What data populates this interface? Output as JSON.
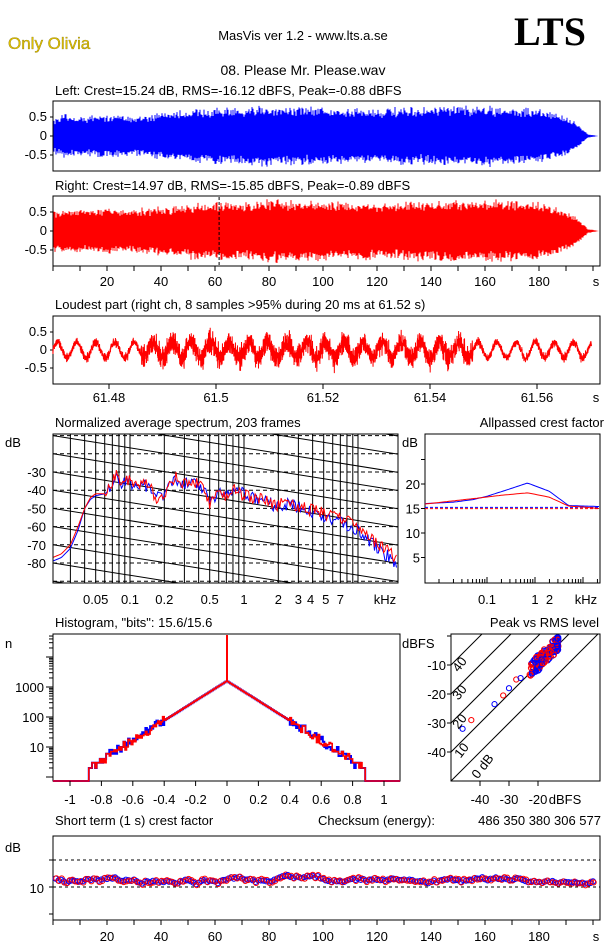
{
  "header": {
    "brand": "Only Olivia",
    "app_title": "MasVis ver 1.2 - www.lts.a.se",
    "logo_text": "LTS",
    "file_name": "08. Please Mr. Please.wav"
  },
  "colors": {
    "left": "#0000ff",
    "right": "#ff0000",
    "brand": "#e0c000"
  },
  "chart_data": [
    {
      "id": "left",
      "type": "line",
      "title": "Left: Crest=15.24 dB, RMS=-16.12 dBFS, Peak=-0.88 dBFS",
      "yticks": [
        "0.5",
        "0",
        "-0.5"
      ],
      "ylim": [
        -0.92,
        0.92
      ],
      "xlim": [
        0,
        202
      ],
      "envelope": {
        "t": [
          0,
          5,
          10,
          20,
          30,
          40,
          60,
          70,
          80,
          100,
          120,
          140,
          160,
          180,
          190,
          195,
          198,
          202
        ],
        "amplitude": [
          0.5,
          0.6,
          0.55,
          0.6,
          0.55,
          0.65,
          0.8,
          0.75,
          0.85,
          0.8,
          0.75,
          0.8,
          0.85,
          0.75,
          0.55,
          0.3,
          0.05,
          0
        ]
      }
    },
    {
      "id": "right",
      "type": "line",
      "title": "Right: Crest=14.97 dB, RMS=-15.85 dBFS, Peak=-0.89 dBFS",
      "yticks": [
        "0.5",
        "0",
        "-0.5"
      ],
      "xticks": [
        "20",
        "40",
        "60",
        "80",
        "100",
        "120",
        "140",
        "160",
        "180"
      ],
      "xunit": "s",
      "ylim": [
        -0.92,
        0.92
      ],
      "xlim": [
        0,
        202
      ],
      "marker_time": 61.52,
      "envelope": {
        "t": [
          0,
          5,
          10,
          20,
          30,
          40,
          60,
          70,
          80,
          100,
          120,
          140,
          160,
          180,
          190,
          195,
          198,
          202
        ],
        "amplitude": [
          0.55,
          0.62,
          0.6,
          0.62,
          0.6,
          0.68,
          0.82,
          0.78,
          0.88,
          0.82,
          0.78,
          0.82,
          0.88,
          0.78,
          0.58,
          0.32,
          0.06,
          0
        ]
      }
    },
    {
      "id": "loudest",
      "type": "line",
      "title": "Loudest part (right ch, 8 samples >95% during 20 ms at 61.52 s)",
      "yticks": [
        "0.5",
        "0",
        "-0.5"
      ],
      "xticks": [
        "61.48",
        "61.5",
        "61.52",
        "61.54",
        "61.56"
      ],
      "xunit": "s",
      "xlim": [
        61.4695,
        61.5702
      ],
      "ylim": [
        -0.95,
        0.95
      ]
    },
    {
      "id": "spectrum",
      "type": "line",
      "title": "Normalized average spectrum, 203 frames",
      "ylabel": "dB",
      "yticks": [
        "-30",
        "-40",
        "-50",
        "-60",
        "-70",
        "-80"
      ],
      "xticks": [
        "0.05",
        "0.1",
        "0.2",
        "0.5",
        "1",
        "2",
        "3",
        "4",
        "5",
        "7"
      ],
      "xunit": "kHz",
      "xscale": "log",
      "xlim": [
        0.021,
        22
      ],
      "ylim": [
        -91,
        -9
      ],
      "grid": true,
      "series": [
        {
          "channel": "left",
          "f": [
            0.021,
            0.025,
            0.03,
            0.035,
            0.04,
            0.045,
            0.05,
            0.06,
            0.07,
            0.075,
            0.085,
            0.1,
            0.11,
            0.13,
            0.15,
            0.17,
            0.2,
            0.25,
            0.3,
            0.35,
            0.4,
            0.45,
            0.5,
            0.6,
            0.7,
            0.8,
            1,
            1.2,
            1.5,
            2,
            2.5,
            3,
            4,
            5,
            6,
            7,
            8,
            10,
            12,
            15,
            18,
            22
          ],
          "db": [
            -79,
            -77,
            -72,
            -62,
            -50,
            -45,
            -43,
            -42,
            -37,
            -31,
            -36,
            -35,
            -40,
            -37,
            -38,
            -43,
            -42,
            -33,
            -37,
            -35,
            -38,
            -40,
            -48,
            -42,
            -44,
            -40,
            -42,
            -44,
            -46,
            -49,
            -47,
            -50,
            -52,
            -55,
            -57,
            -58,
            -59,
            -62,
            -67,
            -72,
            -76,
            -80
          ]
        },
        {
          "channel": "right",
          "f": [
            0.021,
            0.025,
            0.03,
            0.035,
            0.04,
            0.045,
            0.05,
            0.06,
            0.07,
            0.075,
            0.085,
            0.1,
            0.11,
            0.13,
            0.15,
            0.17,
            0.2,
            0.25,
            0.3,
            0.35,
            0.4,
            0.45,
            0.5,
            0.6,
            0.7,
            0.8,
            1,
            1.2,
            1.5,
            2,
            2.5,
            3,
            4,
            5,
            6,
            7,
            8,
            10,
            12,
            15,
            18,
            22
          ],
          "db": [
            -77,
            -75,
            -70,
            -60,
            -50,
            -44,
            -42,
            -42,
            -36,
            -30,
            -36,
            -34,
            -39,
            -35,
            -38,
            -46,
            -41,
            -33,
            -36,
            -34,
            -37,
            -39,
            -47,
            -41,
            -43,
            -40,
            -43,
            -44,
            -46,
            -48,
            -46,
            -49,
            -51,
            -53,
            -55,
            -56,
            -57,
            -60,
            -65,
            -70,
            -73,
            -77
          ]
        }
      ]
    },
    {
      "id": "allpass",
      "type": "line",
      "title": "Allpassed crest factor",
      "ylabel": "dB",
      "yticks": [
        "20",
        "15",
        "10",
        "5"
      ],
      "xticks": [
        "0.1",
        "1",
        "2"
      ],
      "xunit": "kHz",
      "xscale": "log",
      "xlim": [
        0.005,
        22
      ],
      "ylim": [
        0,
        30
      ],
      "series": [
        {
          "channel": "left",
          "f": [
            0.005,
            0.02,
            0.05,
            0.1,
            0.3,
            0.7,
            2,
            5,
            22
          ],
          "db": [
            16,
            16.3,
            16.8,
            17.5,
            19,
            20.2,
            18.5,
            15.6,
            15.4
          ],
          "reference": 15.24
        },
        {
          "channel": "right",
          "f": [
            0.005,
            0.05,
            0.2,
            0.7,
            2,
            5,
            10,
            22
          ],
          "db": [
            15.9,
            17,
            17.7,
            18.2,
            17.3,
            15.5,
            15.3,
            15
          ],
          "reference": 14.97
        }
      ]
    },
    {
      "id": "histogram",
      "type": "line",
      "title": "Histogram, \"bits\": 15.6/15.6",
      "ylabel": "n",
      "yscale": "log",
      "yticks": [
        "1000",
        "100",
        "10"
      ],
      "xticks": [
        "-1",
        "-0.8",
        "-0.6",
        "-0.4",
        "-0.2",
        "0",
        "0.2",
        "0.4",
        "0.6",
        "0.8",
        "1"
      ],
      "xlim": [
        -1.1,
        1.1
      ],
      "peak_count": 1600,
      "max_abs_sample": 0.88
    },
    {
      "id": "peak-vs-rms",
      "type": "scatter",
      "title": "Peak vs RMS level",
      "ylabel": "dBFS",
      "xunit": "dBFS",
      "yticks": [
        "-10",
        "-20",
        "-30",
        "-40"
      ],
      "xticks": [
        "-40",
        "-30",
        "-20"
      ],
      "crest_lines": [
        "40",
        "30",
        "20",
        "10",
        "0 dB"
      ],
      "xlim": [
        -50,
        1
      ],
      "ylim": [
        -50,
        0
      ],
      "outliers": [
        {
          "channel": "left",
          "rms": -46,
          "peak": -32
        },
        {
          "channel": "right",
          "rms": -43,
          "peak": -29
        },
        {
          "channel": "left",
          "rms": -35,
          "peak": -23.5
        },
        {
          "channel": "right",
          "rms": -32,
          "peak": -20.5
        },
        {
          "channel": "left",
          "rms": -30,
          "peak": -18
        },
        {
          "channel": "right",
          "rms": -27.5,
          "peak": -15
        },
        {
          "channel": "left",
          "rms": -26,
          "peak": -14.5
        }
      ],
      "cluster": {
        "rms_range": [
          -24,
          -13
        ],
        "crest_range": [
          8,
          14
        ]
      }
    },
    {
      "id": "short-term-crest",
      "type": "scatter",
      "title": "Short term (1 s) crest factor",
      "checksum_label": "Checksum (energy):",
      "checksum_value": "486 350 380 306 577",
      "ylabel": "dB",
      "yticks": [
        "10"
      ],
      "xticks": [
        "20",
        "40",
        "60",
        "80",
        "100",
        "120",
        "140",
        "160",
        "180"
      ],
      "xunit": "s",
      "xlim": [
        0,
        202
      ],
      "ylim": [
        -2,
        29
      ],
      "reference_lines": [
        10,
        20
      ],
      "typical_range": [
        10,
        15
      ]
    }
  ]
}
